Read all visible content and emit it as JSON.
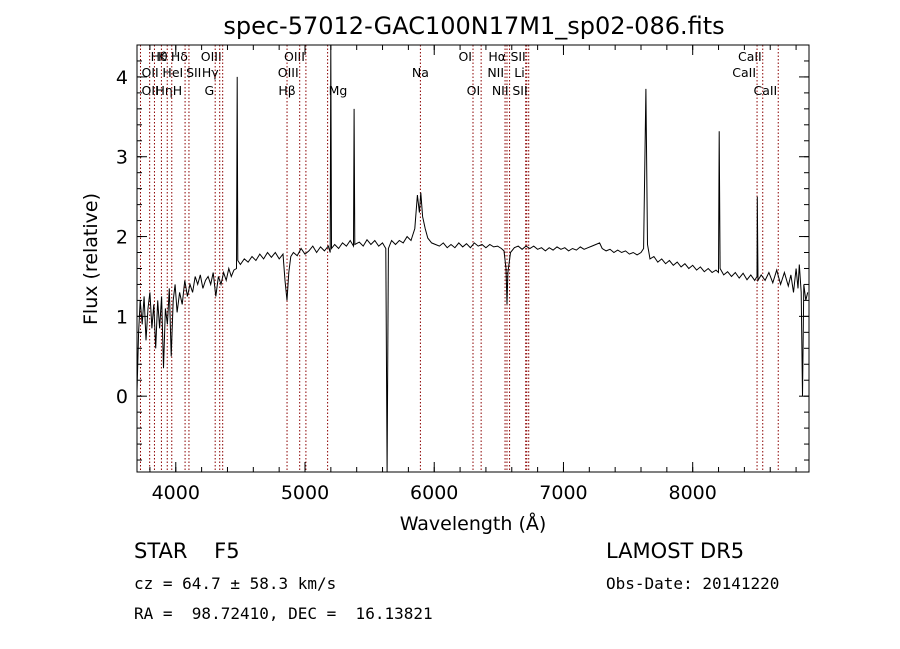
{
  "chart_data": {
    "type": "line",
    "title": "spec-57012-GAC100N17M1_sp02-086.fits",
    "xlabel": "Wavelength (Å)",
    "ylabel": "Flux (relative)",
    "xlim": [
      3700,
      8900
    ],
    "ylim": [
      -0.95,
      4.4
    ],
    "xticks": [
      4000,
      5000,
      6000,
      7000,
      8000
    ],
    "yticks": [
      0,
      1,
      2,
      3,
      4
    ],
    "x_minor_step": 200,
    "y_minor_step": 0.2,
    "series": [
      {
        "values_xy": [
          [
            3700,
            0.05
          ],
          [
            3712,
            0.8
          ],
          [
            3725,
            1.2
          ],
          [
            3740,
            0.9
          ],
          [
            3755,
            1.25
          ],
          [
            3770,
            0.7
          ],
          [
            3785,
            1.1
          ],
          [
            3800,
            1.3
          ],
          [
            3815,
            0.85
          ],
          [
            3830,
            1.15
          ],
          [
            3845,
            0.6
          ],
          [
            3860,
            1.2
          ],
          [
            3875,
            0.85
          ],
          [
            3890,
            1.25
          ],
          [
            3905,
            0.35
          ],
          [
            3920,
            1.1
          ],
          [
            3935,
            0.9
          ],
          [
            3950,
            1.35
          ],
          [
            3965,
            0.5
          ],
          [
            3980,
            1.2
          ],
          [
            3995,
            1.4
          ],
          [
            4010,
            1.05
          ],
          [
            4030,
            1.3
          ],
          [
            4050,
            1.15
          ],
          [
            4070,
            1.45
          ],
          [
            4090,
            1.25
          ],
          [
            4110,
            1.4
          ],
          [
            4130,
            1.3
          ],
          [
            4150,
            1.5
          ],
          [
            4170,
            1.4
          ],
          [
            4190,
            1.52
          ],
          [
            4210,
            1.35
          ],
          [
            4230,
            1.45
          ],
          [
            4250,
            1.5
          ],
          [
            4270,
            1.4
          ],
          [
            4290,
            1.55
          ],
          [
            4310,
            1.25
          ],
          [
            4330,
            1.5
          ],
          [
            4350,
            1.4
          ],
          [
            4370,
            1.55
          ],
          [
            4390,
            1.45
          ],
          [
            4410,
            1.6
          ],
          [
            4430,
            1.5
          ],
          [
            4450,
            1.58
          ],
          [
            4470,
            1.6
          ],
          [
            4475,
            4.0
          ],
          [
            4480,
            1.7
          ],
          [
            4500,
            1.65
          ],
          [
            4530,
            1.72
          ],
          [
            4560,
            1.68
          ],
          [
            4590,
            1.75
          ],
          [
            4620,
            1.7
          ],
          [
            4650,
            1.78
          ],
          [
            4680,
            1.72
          ],
          [
            4710,
            1.8
          ],
          [
            4740,
            1.74
          ],
          [
            4770,
            1.8
          ],
          [
            4800,
            1.72
          ],
          [
            4830,
            1.78
          ],
          [
            4845,
            1.45
          ],
          [
            4861,
            1.2
          ],
          [
            4875,
            1.55
          ],
          [
            4890,
            1.75
          ],
          [
            4910,
            1.8
          ],
          [
            4940,
            1.76
          ],
          [
            4970,
            1.85
          ],
          [
            5000,
            1.78
          ],
          [
            5030,
            1.82
          ],
          [
            5060,
            1.88
          ],
          [
            5090,
            1.8
          ],
          [
            5120,
            1.87
          ],
          [
            5150,
            1.82
          ],
          [
            5180,
            1.88
          ],
          [
            5195,
            1.8
          ],
          [
            5200,
            4.4
          ],
          [
            5205,
            1.85
          ],
          [
            5230,
            1.9
          ],
          [
            5260,
            1.85
          ],
          [
            5290,
            1.92
          ],
          [
            5320,
            1.88
          ],
          [
            5350,
            1.95
          ],
          [
            5375,
            1.88
          ],
          [
            5380,
            3.6
          ],
          [
            5385,
            1.9
          ],
          [
            5420,
            1.93
          ],
          [
            5450,
            1.88
          ],
          [
            5480,
            1.96
          ],
          [
            5510,
            1.9
          ],
          [
            5540,
            1.95
          ],
          [
            5570,
            1.88
          ],
          [
            5600,
            1.92
          ],
          [
            5625,
            1.85
          ],
          [
            5635,
            -0.95
          ],
          [
            5645,
            1.85
          ],
          [
            5670,
            1.95
          ],
          [
            5700,
            1.9
          ],
          [
            5730,
            1.95
          ],
          [
            5760,
            1.92
          ],
          [
            5790,
            2.0
          ],
          [
            5820,
            1.95
          ],
          [
            5850,
            2.1
          ],
          [
            5870,
            2.52
          ],
          [
            5885,
            2.3
          ],
          [
            5896,
            2.55
          ],
          [
            5910,
            2.25
          ],
          [
            5930,
            2.1
          ],
          [
            5950,
            1.98
          ],
          [
            5980,
            1.92
          ],
          [
            6010,
            1.9
          ],
          [
            6040,
            1.88
          ],
          [
            6070,
            1.92
          ],
          [
            6100,
            1.86
          ],
          [
            6130,
            1.9
          ],
          [
            6160,
            1.86
          ],
          [
            6190,
            1.92
          ],
          [
            6220,
            1.87
          ],
          [
            6250,
            1.91
          ],
          [
            6280,
            1.86
          ],
          [
            6310,
            1.92
          ],
          [
            6340,
            1.88
          ],
          [
            6370,
            1.9
          ],
          [
            6400,
            1.86
          ],
          [
            6430,
            1.9
          ],
          [
            6460,
            1.87
          ],
          [
            6490,
            1.88
          ],
          [
            6520,
            1.85
          ],
          [
            6540,
            1.82
          ],
          [
            6555,
            1.6
          ],
          [
            6563,
            1.15
          ],
          [
            6570,
            1.55
          ],
          [
            6590,
            1.8
          ],
          [
            6620,
            1.86
          ],
          [
            6650,
            1.88
          ],
          [
            6680,
            1.84
          ],
          [
            6710,
            1.88
          ],
          [
            6740,
            1.85
          ],
          [
            6770,
            1.88
          ],
          [
            6800,
            1.84
          ],
          [
            6830,
            1.86
          ],
          [
            6860,
            1.82
          ],
          [
            6890,
            1.86
          ],
          [
            6920,
            1.83
          ],
          [
            6950,
            1.87
          ],
          [
            6980,
            1.84
          ],
          [
            7010,
            1.86
          ],
          [
            7040,
            1.82
          ],
          [
            7070,
            1.85
          ],
          [
            7100,
            1.83
          ],
          [
            7130,
            1.87
          ],
          [
            7160,
            1.84
          ],
          [
            7190,
            1.86
          ],
          [
            7220,
            1.88
          ],
          [
            7250,
            1.9
          ],
          [
            7280,
            1.92
          ],
          [
            7300,
            1.85
          ],
          [
            7330,
            1.82
          ],
          [
            7360,
            1.84
          ],
          [
            7390,
            1.8
          ],
          [
            7420,
            1.83
          ],
          [
            7450,
            1.8
          ],
          [
            7480,
            1.82
          ],
          [
            7510,
            1.78
          ],
          [
            7540,
            1.8
          ],
          [
            7570,
            1.77
          ],
          [
            7600,
            1.8
          ],
          [
            7620,
            1.85
          ],
          [
            7638,
            3.85
          ],
          [
            7650,
            1.9
          ],
          [
            7670,
            1.72
          ],
          [
            7700,
            1.75
          ],
          [
            7730,
            1.68
          ],
          [
            7760,
            1.72
          ],
          [
            7790,
            1.66
          ],
          [
            7820,
            1.7
          ],
          [
            7850,
            1.64
          ],
          [
            7880,
            1.68
          ],
          [
            7910,
            1.62
          ],
          [
            7940,
            1.66
          ],
          [
            7970,
            1.6
          ],
          [
            8000,
            1.64
          ],
          [
            8030,
            1.58
          ],
          [
            8060,
            1.62
          ],
          [
            8090,
            1.56
          ],
          [
            8120,
            1.6
          ],
          [
            8150,
            1.55
          ],
          [
            8180,
            1.58
          ],
          [
            8200,
            1.55
          ],
          [
            8205,
            3.32
          ],
          [
            8212,
            1.6
          ],
          [
            8240,
            1.52
          ],
          [
            8270,
            1.56
          ],
          [
            8300,
            1.5
          ],
          [
            8330,
            1.55
          ],
          [
            8360,
            1.48
          ],
          [
            8390,
            1.54
          ],
          [
            8420,
            1.46
          ],
          [
            8450,
            1.52
          ],
          [
            8480,
            1.45
          ],
          [
            8498,
            1.5
          ],
          [
            8500,
            2.5
          ],
          [
            8505,
            1.45
          ],
          [
            8530,
            1.52
          ],
          [
            8560,
            1.45
          ],
          [
            8590,
            1.55
          ],
          [
            8620,
            1.42
          ],
          [
            8650,
            1.58
          ],
          [
            8680,
            1.4
          ],
          [
            8710,
            1.55
          ],
          [
            8740,
            1.38
          ],
          [
            8760,
            1.52
          ],
          [
            8780,
            1.3
          ],
          [
            8800,
            1.6
          ],
          [
            8815,
            1.35
          ],
          [
            8825,
            1.65
          ],
          [
            8840,
            1.3
          ],
          [
            8850,
            0.0
          ],
          [
            8860,
            1.4
          ],
          [
            8875,
            1.2
          ],
          [
            8890,
            1.3
          ]
        ]
      }
    ],
    "lines": [
      {
        "label": "Hθ",
        "x": 3798,
        "row": 1,
        "side": "right"
      },
      {
        "label": "OII",
        "x": 3727,
        "row": 2,
        "side": "right"
      },
      {
        "label": "OII",
        "x": 3727,
        "row": 3,
        "side": "right"
      },
      {
        "label": "Hη",
        "x": 3835,
        "row": 3,
        "side": "right"
      },
      {
        "label": "K",
        "x": 3934,
        "row": 1,
        "side": "left"
      },
      {
        "label": "HeI",
        "x": 3889,
        "row": 2,
        "side": "right"
      },
      {
        "label": "H",
        "x": 3969,
        "row": 3,
        "side": "right"
      },
      {
        "label": "Hδ",
        "x": 4102,
        "row": 1,
        "side": "left"
      },
      {
        "label": "SII",
        "x": 4072,
        "row": 2,
        "side": "right"
      },
      {
        "label": "OIII",
        "x": 4363,
        "row": 1,
        "side": "left"
      },
      {
        "label": "Hγ",
        "x": 4340,
        "row": 2,
        "side": "left"
      },
      {
        "label": "G",
        "x": 4305,
        "row": 3,
        "side": "left"
      },
      {
        "label": "Hβ",
        "x": 4861,
        "row": 3,
        "side": "center"
      },
      {
        "label": "OIII",
        "x": 5007,
        "row": 1,
        "side": "left"
      },
      {
        "label": "OIII",
        "x": 4959,
        "row": 2,
        "side": "left"
      },
      {
        "label": "Mg",
        "x": 5175,
        "row": 3,
        "side": "right"
      },
      {
        "label": "Na",
        "x": 5893,
        "row": 2,
        "side": "center"
      },
      {
        "label": "OI",
        "x": 6300,
        "row": 1,
        "side": "left"
      },
      {
        "label": "OI",
        "x": 6363,
        "row": 3,
        "side": "left"
      },
      {
        "label": "Hα",
        "x": 6563,
        "row": 1,
        "side": "left"
      },
      {
        "label": "NII",
        "x": 6548,
        "row": 2,
        "side": "left"
      },
      {
        "label": "NII",
        "x": 6583,
        "row": 3,
        "side": "left"
      },
      {
        "label": "SII",
        "x": 6716,
        "row": 1,
        "side": "left"
      },
      {
        "label": "Li",
        "x": 6708,
        "row": 2,
        "side": "left"
      },
      {
        "label": "SII",
        "x": 6731,
        "row": 3,
        "side": "left"
      },
      {
        "label": "CaII",
        "x": 8542,
        "row": 1,
        "side": "left"
      },
      {
        "label": "CaII",
        "x": 8498,
        "row": 2,
        "side": "left"
      },
      {
        "label": "CaII",
        "x": 8662,
        "row": 3,
        "side": "left"
      }
    ]
  },
  "info": {
    "class_text": "STAR    F5",
    "survey": "LAMOST DR5",
    "cz_text": "cz = 64.7 ± 58.3 km/s",
    "obs_date": "Obs-Date: 20141220",
    "coords": "RA =  98.72410, DEC =  16.13821"
  },
  "colors": {
    "spectrum": "#000000",
    "line_markers": "#8b0000",
    "background": "#ffffff"
  }
}
